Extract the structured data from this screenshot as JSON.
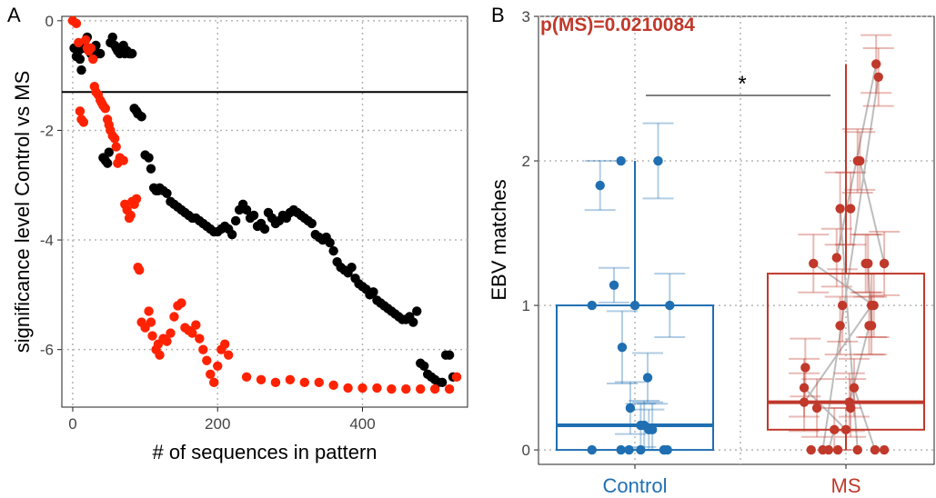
{
  "colors": {
    "black_series": "#000000",
    "red_series": "#ff2200",
    "control": "#1f6fb2",
    "ms": "#c0392b",
    "grid": "#b5b5b5",
    "axis": "#222222",
    "tick_text": "#444444"
  },
  "panel_a": {
    "letter": "A",
    "xlabel": "# of sequences in pattern",
    "ylabel": "significance level Control vs MS"
  },
  "panel_b": {
    "letter": "B",
    "ylabel": "EBV matches",
    "pvalue": "p(MS)=0.0210084",
    "sig": "*"
  },
  "chart_data": [
    {
      "type": "scatter",
      "xlabel": "# of sequences in pattern",
      "ylabel": "significance level Control vs MS",
      "xlim": [
        -15,
        545
      ],
      "ylim": [
        -7.05,
        0.08
      ],
      "xticks": [
        0,
        200,
        400
      ],
      "yticks": [
        0,
        -2,
        -4,
        -6
      ],
      "grid": true,
      "hline": -1.3,
      "series": [
        {
          "color": "black",
          "x": [
            2,
            5,
            8,
            10,
            12,
            15,
            20,
            25,
            28,
            32,
            35,
            38,
            42,
            45,
            48,
            50,
            52,
            55,
            58,
            60,
            62,
            65,
            68,
            70,
            72,
            75,
            78,
            80,
            82,
            85,
            88,
            90,
            95,
            100,
            105,
            108,
            112,
            115,
            118,
            120,
            125,
            130,
            135,
            140,
            145,
            150,
            155,
            160,
            165,
            170,
            175,
            180,
            185,
            190,
            195,
            200,
            205,
            210,
            215,
            220,
            225,
            230,
            235,
            240,
            245,
            250,
            255,
            260,
            265,
            270,
            275,
            280,
            285,
            290,
            295,
            300,
            305,
            310,
            315,
            320,
            325,
            330,
            335,
            340,
            345,
            350,
            355,
            360,
            365,
            370,
            375,
            380,
            385,
            390,
            395,
            400,
            405,
            410,
            415,
            420,
            425,
            430,
            435,
            440,
            445,
            450,
            455,
            460,
            465,
            470,
            475,
            480,
            485,
            490,
            495,
            500,
            505,
            510,
            515,
            520,
            525
          ],
          "y": [
            -0.5,
            -0.65,
            -0.55,
            -0.7,
            -0.9,
            -0.5,
            -0.3,
            -0.6,
            -0.65,
            -0.45,
            -0.6,
            -0.6,
            -2.5,
            -2.55,
            -2.6,
            -2.4,
            -0.4,
            -0.3,
            -0.45,
            -0.5,
            -0.55,
            -0.6,
            -0.5,
            -0.45,
            -0.6,
            -0.55,
            -0.6,
            -0.6,
            -0.6,
            -1.6,
            -1.65,
            -1.7,
            -1.75,
            -2.45,
            -2.5,
            -2.7,
            -3.05,
            -3.1,
            -3.1,
            -3.05,
            -3.1,
            -3.15,
            -3.3,
            -3.35,
            -3.4,
            -3.45,
            -3.5,
            -3.55,
            -3.6,
            -3.6,
            -3.65,
            -3.7,
            -3.75,
            -3.8,
            -3.85,
            -3.85,
            -3.8,
            -3.75,
            -3.8,
            -3.9,
            -3.65,
            -3.45,
            -3.35,
            -3.45,
            -3.6,
            -3.55,
            -3.75,
            -3.7,
            -3.8,
            -3.5,
            -3.6,
            -3.7,
            -3.65,
            -3.55,
            -3.6,
            -3.5,
            -3.45,
            -3.5,
            -3.55,
            -3.6,
            -3.65,
            -3.7,
            -3.9,
            -3.95,
            -4.0,
            -3.95,
            -4.05,
            -4.2,
            -4.4,
            -4.5,
            -4.55,
            -4.6,
            -4.5,
            -4.7,
            -4.8,
            -4.85,
            -4.9,
            -5.0,
            -4.95,
            -5.1,
            -5.15,
            -5.2,
            -5.25,
            -5.3,
            -5.35,
            -5.4,
            -5.45,
            -5.45,
            -5.4,
            -5.5,
            -5.3,
            -6.25,
            -6.3,
            -6.45,
            -6.5,
            -6.55,
            -6.6,
            -6.6,
            -6.1,
            -6.1,
            -6.5
          ]
        },
        {
          "color": "red",
          "x": [
            0,
            5,
            8,
            10,
            12,
            15,
            18,
            20,
            22,
            25,
            28,
            30,
            32,
            35,
            38,
            40,
            42,
            45,
            48,
            50,
            52,
            55,
            58,
            60,
            62,
            65,
            70,
            72,
            75,
            78,
            80,
            82,
            85,
            88,
            90,
            92,
            95,
            100,
            105,
            108,
            110,
            115,
            118,
            120,
            125,
            130,
            135,
            140,
            145,
            150,
            155,
            160,
            165,
            170,
            175,
            180,
            185,
            190,
            195,
            200,
            205,
            210,
            215,
            240,
            260,
            280,
            300,
            320,
            340,
            360,
            380,
            400,
            420,
            440,
            460,
            480,
            500,
            520,
            530
          ],
          "y": [
            0.0,
            -0.05,
            -0.4,
            -1.65,
            -1.8,
            -1.85,
            -0.35,
            -0.5,
            -0.55,
            -0.5,
            -0.7,
            -1.2,
            -1.3,
            -1.35,
            -1.45,
            -1.5,
            -1.55,
            -1.6,
            -1.8,
            -1.9,
            -2.0,
            -2.1,
            -2.15,
            -2.3,
            -2.6,
            -2.5,
            -2.55,
            -3.35,
            -3.45,
            -3.6,
            -3.55,
            -3.3,
            -3.35,
            -3.25,
            -4.5,
            -4.55,
            -5.5,
            -5.6,
            -5.3,
            -5.5,
            -5.75,
            -6.0,
            -5.9,
            -6.1,
            -5.8,
            -5.85,
            -5.7,
            -5.4,
            -5.2,
            -5.15,
            -5.6,
            -5.65,
            -5.7,
            -5.55,
            -5.8,
            -6.0,
            -6.2,
            -6.45,
            -6.6,
            -6.3,
            -6.0,
            -5.9,
            -6.1,
            -6.5,
            -6.55,
            -6.6,
            -6.55,
            -6.6,
            -6.6,
            -6.65,
            -6.7,
            -6.7,
            -6.7,
            -6.72,
            -6.72,
            -6.72,
            -6.72,
            -6.72,
            -6.5
          ]
        }
      ]
    },
    {
      "type": "box",
      "ylabel": "EBV matches",
      "categories": [
        "Control",
        "MS"
      ],
      "ylim": [
        -0.1,
        3.0
      ],
      "yticks": [
        0,
        1,
        2,
        3
      ],
      "grid": true,
      "annotation": "p(MS)=0.0210084",
      "significance": "*",
      "boxes": [
        {
          "name": "Control",
          "q1": 0.0,
          "median": 0.17,
          "q3": 1.0,
          "whisker_low": 0.0,
          "whisker_high": 2.0
        },
        {
          "name": "MS",
          "q1": 0.14,
          "median": 0.33,
          "q3": 1.22,
          "whisker_low": 0.0,
          "whisker_high": 2.67
        }
      ],
      "points": [
        {
          "group": "Control",
          "jitter": -0.3,
          "y": 1.83,
          "err": 0.17
        },
        {
          "group": "Control",
          "jitter": -0.12,
          "y": 2.0,
          "err": 0.0
        },
        {
          "group": "Control",
          "jitter": 0.2,
          "y": 2.0,
          "err": 0.26
        },
        {
          "group": "Control",
          "jitter": -0.18,
          "y": 1.14,
          "err": 0.12
        },
        {
          "group": "Control",
          "jitter": -0.37,
          "y": 1.0,
          "err": 0.0
        },
        {
          "group": "Control",
          "jitter": 0.0,
          "y": 1.0,
          "err": 0.0
        },
        {
          "group": "Control",
          "jitter": 0.3,
          "y": 1.0,
          "err": 0.22
        },
        {
          "group": "Control",
          "jitter": -0.11,
          "y": 0.71,
          "err": 0.25
        },
        {
          "group": "Control",
          "jitter": -0.04,
          "y": 0.29,
          "err": 0.18
        },
        {
          "group": "Control",
          "jitter": 0.11,
          "y": 0.5,
          "err": 0.17
        },
        {
          "group": "Control",
          "jitter": 0.05,
          "y": 0.17,
          "err": 0.15
        },
        {
          "group": "Control",
          "jitter": 0.08,
          "y": 0.17,
          "err": 0.17
        },
        {
          "group": "Control",
          "jitter": 0.12,
          "y": 0.14,
          "err": 0.14
        },
        {
          "group": "Control",
          "jitter": 0.15,
          "y": 0.14,
          "err": 0.18
        },
        {
          "group": "Control",
          "jitter": -0.37,
          "y": 0.0,
          "err": 0.0
        },
        {
          "group": "Control",
          "jitter": -0.12,
          "y": 0.0,
          "err": 0.0
        },
        {
          "group": "Control",
          "jitter": -0.05,
          "y": 0.0,
          "err": 0.0
        },
        {
          "group": "Control",
          "jitter": 0.05,
          "y": 0.0,
          "err": 0.0
        },
        {
          "group": "Control",
          "jitter": 0.25,
          "y": 0.0,
          "err": 0.0
        },
        {
          "group": "Control",
          "jitter": 0.28,
          "y": 0.0,
          "err": 0.0
        },
        {
          "group": "MS",
          "jitter": 0.26,
          "y": 2.67,
          "err": 0.2
        },
        {
          "group": "MS",
          "jitter": 0.28,
          "y": 2.58,
          "err": 0.2
        },
        {
          "group": "MS",
          "jitter": 0.1,
          "y": 2.0,
          "err": 0.22
        },
        {
          "group": "MS",
          "jitter": 0.12,
          "y": 2.0,
          "err": 0.2
        },
        {
          "group": "MS",
          "jitter": -0.05,
          "y": 1.67,
          "err": 0.25
        },
        {
          "group": "MS",
          "jitter": 0.04,
          "y": 1.67,
          "err": 0.25
        },
        {
          "group": "MS",
          "jitter": -0.28,
          "y": 1.29,
          "err": 0.2
        },
        {
          "group": "MS",
          "jitter": -0.08,
          "y": 1.33,
          "err": 0.2
        },
        {
          "group": "MS",
          "jitter": 0.17,
          "y": 1.29,
          "err": 0.2
        },
        {
          "group": "MS",
          "jitter": 0.19,
          "y": 1.29,
          "err": 0.2
        },
        {
          "group": "MS",
          "jitter": 0.33,
          "y": 1.29,
          "err": 0.22
        },
        {
          "group": "MS",
          "jitter": -0.03,
          "y": 1.0,
          "err": 0.25
        },
        {
          "group": "MS",
          "jitter": 0.22,
          "y": 1.0,
          "err": 0.22
        },
        {
          "group": "MS",
          "jitter": 0.24,
          "y": 1.0,
          "err": 0.22
        },
        {
          "group": "MS",
          "jitter": -0.05,
          "y": 0.86,
          "err": 0.2
        },
        {
          "group": "MS",
          "jitter": 0.2,
          "y": 0.86,
          "err": 0.2
        },
        {
          "group": "MS",
          "jitter": 0.22,
          "y": 0.86,
          "err": 0.2
        },
        {
          "group": "MS",
          "jitter": -0.35,
          "y": 0.57,
          "err": 0.2
        },
        {
          "group": "MS",
          "jitter": -0.36,
          "y": 0.43,
          "err": 0.2
        },
        {
          "group": "MS",
          "jitter": -0.36,
          "y": 0.33,
          "err": 0.2
        },
        {
          "group": "MS",
          "jitter": -0.25,
          "y": 0.29,
          "err": 0.2
        },
        {
          "group": "MS",
          "jitter": -0.1,
          "y": 0.14,
          "err": 0.15
        },
        {
          "group": "MS",
          "jitter": 0.03,
          "y": 0.33,
          "err": 0.2
        },
        {
          "group": "MS",
          "jitter": 0.04,
          "y": 0.29,
          "err": 0.2
        },
        {
          "group": "MS",
          "jitter": 0.07,
          "y": 0.43,
          "err": 0.2
        },
        {
          "group": "MS",
          "jitter": 0.0,
          "y": 0.14,
          "err": 0.15
        },
        {
          "group": "MS",
          "jitter": -0.3,
          "y": 0.0,
          "err": 0.0
        },
        {
          "group": "MS",
          "jitter": -0.2,
          "y": 0.0,
          "err": 0.0
        },
        {
          "group": "MS",
          "jitter": -0.15,
          "y": 0.0,
          "err": 0.0
        },
        {
          "group": "MS",
          "jitter": -0.07,
          "y": 0.0,
          "err": 0.0
        },
        {
          "group": "MS",
          "jitter": 0.1,
          "y": 0.0,
          "err": 0.0
        },
        {
          "group": "MS",
          "jitter": 0.25,
          "y": 0.0,
          "err": 0.0
        },
        {
          "group": "MS",
          "jitter": 0.33,
          "y": 0.0,
          "err": 0.0
        }
      ]
    }
  ]
}
